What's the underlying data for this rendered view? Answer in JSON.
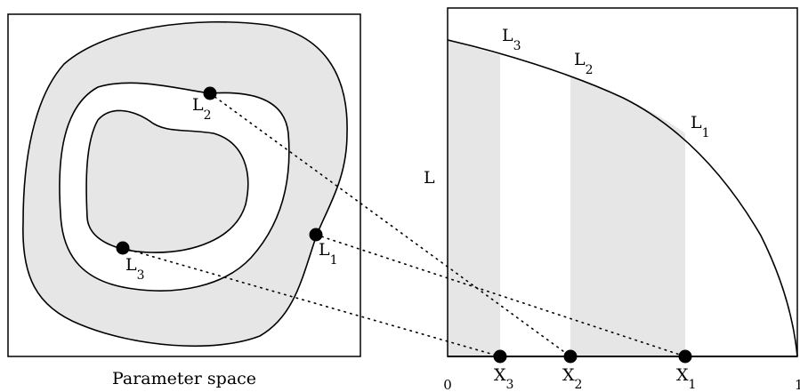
{
  "left_panel": {
    "caption": "Parameter space",
    "points": [
      {
        "letter": "L",
        "sub": "1"
      },
      {
        "letter": "L",
        "sub": "2"
      },
      {
        "letter": "L",
        "sub": "3"
      }
    ]
  },
  "right_panel": {
    "y_axis_label": "L",
    "x_tick_start": "0",
    "x_tick_end": "1",
    "curve_labels": [
      {
        "letter": "L",
        "sub": "3"
      },
      {
        "letter": "L",
        "sub": "2"
      },
      {
        "letter": "L",
        "sub": "1"
      }
    ],
    "x_points": [
      {
        "letter": "X",
        "sub": "3"
      },
      {
        "letter": "X",
        "sub": "2"
      },
      {
        "letter": "X",
        "sub": "1"
      }
    ]
  },
  "colors": {
    "shade": "#e6e6e6",
    "ink": "#000000",
    "background": "#ffffff"
  }
}
